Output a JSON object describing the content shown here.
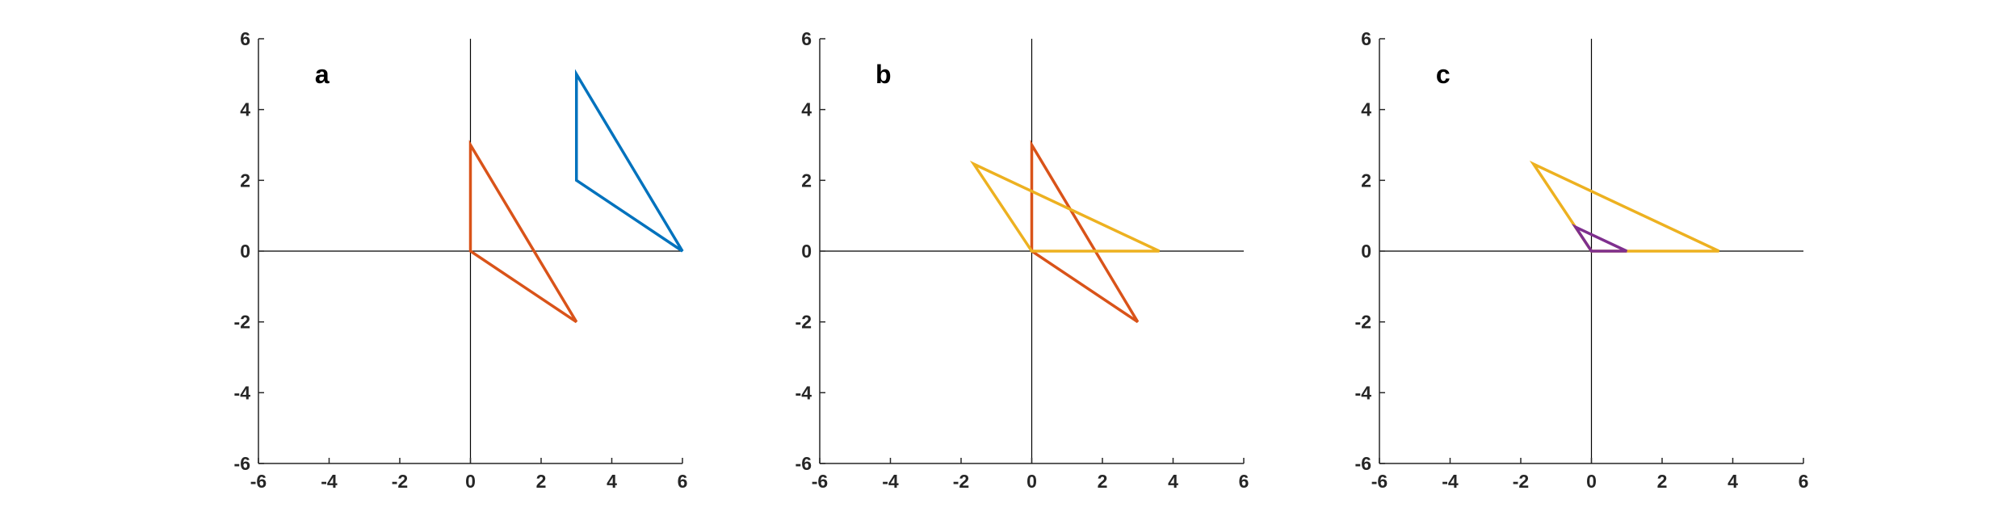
{
  "chart_data": [
    {
      "type": "line",
      "panel_label": "a",
      "xlim": [
        -6,
        6
      ],
      "ylim": [
        -6,
        6
      ],
      "xticks": [
        "-6",
        "-4",
        "-2",
        "0",
        "2",
        "4",
        "6"
      ],
      "yticks": [
        "6",
        "4",
        "2",
        "0",
        "-2",
        "-4",
        "-6"
      ],
      "origin_lines": true,
      "grid": false,
      "series": [
        {
          "color": "#0072BD",
          "closed": true,
          "x": [
            3,
            3,
            6
          ],
          "y": [
            2,
            5,
            0
          ]
        },
        {
          "color": "#D95319",
          "closed": true,
          "x": [
            0,
            0,
            3
          ],
          "y": [
            0,
            3,
            -2
          ]
        }
      ]
    },
    {
      "type": "line",
      "panel_label": "b",
      "xlim": [
        -6,
        6
      ],
      "ylim": [
        -6,
        6
      ],
      "xticks": [
        "-6",
        "-4",
        "-2",
        "0",
        "2",
        "4",
        "6"
      ],
      "yticks": [
        "6",
        "4",
        "2",
        "0",
        "-2",
        "-4",
        "-6"
      ],
      "origin_lines": true,
      "grid": false,
      "series": [
        {
          "color": "#D95319",
          "closed": true,
          "x": [
            0,
            0,
            3
          ],
          "y": [
            0,
            3,
            -2
          ]
        },
        {
          "color": "#EDB120",
          "closed": true,
          "x": [
            0,
            -1.64,
            3.61
          ],
          "y": [
            0,
            2.46,
            0
          ]
        }
      ]
    },
    {
      "type": "line",
      "panel_label": "c",
      "xlim": [
        -6,
        6
      ],
      "ylim": [
        -6,
        6
      ],
      "xticks": [
        "-6",
        "-4",
        "-2",
        "0",
        "2",
        "4",
        "6"
      ],
      "yticks": [
        "6",
        "4",
        "2",
        "0",
        "-2",
        "-4",
        "-6"
      ],
      "origin_lines": true,
      "grid": false,
      "series": [
        {
          "color": "#EDB120",
          "closed": true,
          "x": [
            0,
            -1.64,
            3.61
          ],
          "y": [
            0,
            2.46,
            0
          ]
        },
        {
          "color": "#7E2F8E",
          "closed": true,
          "x": [
            0,
            -0.45,
            1
          ],
          "y": [
            0,
            0.68,
            0
          ]
        }
      ]
    }
  ]
}
